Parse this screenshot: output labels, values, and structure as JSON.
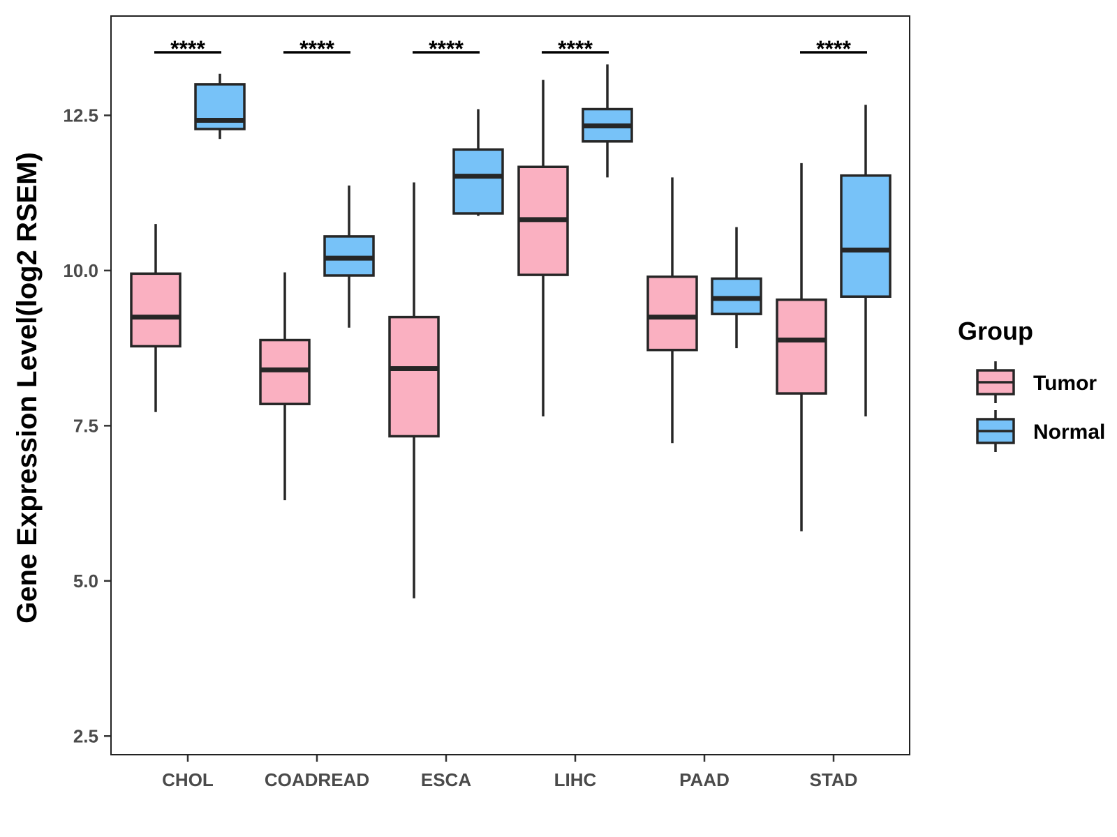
{
  "colors": {
    "tumor": "#FAB0C1",
    "normal": "#77C2F8"
  },
  "chart_data": {
    "type": "boxplot",
    "title": "",
    "xlabel": "",
    "ylabel": "Gene Expression Level(log2 RSEM)",
    "ylim": [
      2.2,
      14.1
    ],
    "yticks": [
      2.5,
      5.0,
      7.5,
      10.0,
      12.5
    ],
    "ytick_labels": [
      "2.5",
      "5.0",
      "7.5",
      "10.0",
      "12.5"
    ],
    "categories": [
      "CHOL",
      "COADREAD",
      "ESCA",
      "LIHC",
      "PAAD",
      "STAD"
    ],
    "legend": {
      "title": "Group",
      "position": "right",
      "entries": [
        {
          "name": "Tumor",
          "color_key": "tumor"
        },
        {
          "name": "Normal",
          "color_key": "normal"
        }
      ]
    },
    "series": [
      {
        "name": "Tumor",
        "color_key": "tumor",
        "boxes": [
          {
            "category": "CHOL",
            "min": 7.72,
            "q1": 8.78,
            "median": 9.25,
            "q3": 9.95,
            "max": 10.75
          },
          {
            "category": "COADREAD",
            "min": 6.3,
            "q1": 7.85,
            "median": 8.4,
            "q3": 8.88,
            "max": 9.97
          },
          {
            "category": "ESCA",
            "min": 4.72,
            "q1": 7.33,
            "median": 8.42,
            "q3": 9.25,
            "max": 11.42
          },
          {
            "category": "LIHC",
            "min": 7.65,
            "q1": 9.93,
            "median": 10.82,
            "q3": 11.67,
            "max": 13.07
          },
          {
            "category": "PAAD",
            "min": 7.22,
            "q1": 8.72,
            "median": 9.25,
            "q3": 9.9,
            "max": 11.5
          },
          {
            "category": "STAD",
            "min": 5.8,
            "q1": 8.02,
            "median": 8.88,
            "q3": 9.53,
            "max": 11.73
          }
        ]
      },
      {
        "name": "Normal",
        "color_key": "normal",
        "boxes": [
          {
            "category": "CHOL",
            "min": 12.12,
            "q1": 12.28,
            "median": 12.42,
            "q3": 13.0,
            "max": 13.17
          },
          {
            "category": "COADREAD",
            "min": 9.08,
            "q1": 9.92,
            "median": 10.2,
            "q3": 10.55,
            "max": 11.37
          },
          {
            "category": "ESCA",
            "min": 10.88,
            "q1": 10.92,
            "median": 11.52,
            "q3": 11.95,
            "max": 12.6
          },
          {
            "category": "LIHC",
            "min": 11.5,
            "q1": 12.08,
            "median": 12.33,
            "q3": 12.6,
            "max": 13.32
          },
          {
            "category": "PAAD",
            "min": 8.75,
            "q1": 9.3,
            "median": 9.55,
            "q3": 9.87,
            "max": 10.7
          },
          {
            "category": "STAD",
            "min": 7.65,
            "q1": 9.58,
            "median": 10.33,
            "q3": 11.53,
            "max": 12.67
          }
        ]
      }
    ],
    "annotations": [
      {
        "category": "CHOL",
        "text": "****"
      },
      {
        "category": "COADREAD",
        "text": "****"
      },
      {
        "category": "ESCA",
        "text": "****"
      },
      {
        "category": "LIHC",
        "text": "****"
      },
      {
        "category": "STAD",
        "text": "****"
      }
    ]
  }
}
